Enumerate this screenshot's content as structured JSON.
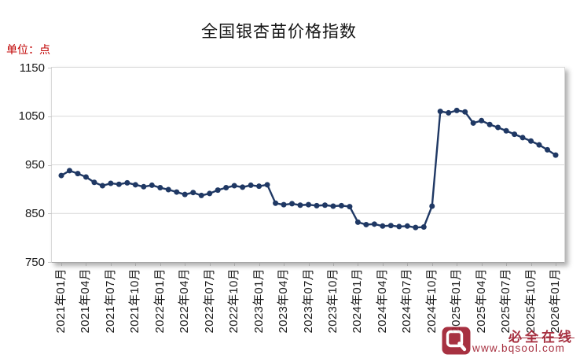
{
  "page": {
    "title": "全国银杏苗价格指数",
    "unit_label": "单位：点",
    "unit_color": "#C00000"
  },
  "watermark": {
    "brand": "必全在线",
    "url": "www.bqsool.com",
    "color": "#A02031"
  },
  "chart_data": {
    "type": "line",
    "title": "全国银杏苗价格指数",
    "unit": "点",
    "ylim": [
      750,
      1150
    ],
    "yticks": [
      1150,
      1050,
      950,
      850,
      750
    ],
    "x_tick_every": 3,
    "grid": true,
    "legend": false,
    "line_color": "#1F3864",
    "marker": "circle",
    "months": [
      "2021年01月",
      "2021年02月",
      "2021年03月",
      "2021年04月",
      "2021年05月",
      "2021年06月",
      "2021年07月",
      "2021年08月",
      "2021年09月",
      "2021年10月",
      "2021年11月",
      "2021年12月",
      "2022年01月",
      "2022年02月",
      "2022年03月",
      "2022年04月",
      "2022年05月",
      "2022年06月",
      "2022年07月",
      "2022年08月",
      "2022年09月",
      "2022年10月",
      "2022年11月",
      "2022年12月",
      "2023年01月",
      "2023年02月",
      "2023年03月",
      "2023年04月",
      "2023年05月",
      "2023年06月",
      "2023年07月",
      "2023年08月",
      "2023年09月",
      "2023年10月",
      "2023年11月",
      "2023年12月",
      "2024年01月",
      "2024年02月",
      "2024年03月",
      "2024年04月",
      "2024年05月",
      "2024年06月",
      "2024年07月",
      "2024年08月",
      "2024年09月",
      "2024年10月",
      "2024年11月",
      "2024年12月",
      "2025年01月",
      "2025年02月",
      "2025年03月",
      "2025年04月",
      "2025年05月",
      "2025年06月",
      "2025年07月",
      "2025年08月",
      "2025年09月",
      "2025年10月",
      "2025年11月",
      "2025年12月",
      "2026年01月"
    ],
    "values": [
      928,
      938,
      932,
      925,
      914,
      907,
      912,
      910,
      913,
      909,
      905,
      908,
      903,
      899,
      894,
      889,
      893,
      887,
      891,
      898,
      903,
      907,
      904,
      908,
      906,
      909,
      871,
      868,
      870,
      867,
      868,
      866,
      867,
      865,
      866,
      864,
      832,
      827,
      828,
      824,
      825,
      823,
      824,
      821,
      822,
      865,
      1060,
      1057,
      1062,
      1059,
      1036,
      1041,
      1033,
      1027,
      1020,
      1013,
      1006,
      999,
      991,
      981,
      970
    ]
  }
}
